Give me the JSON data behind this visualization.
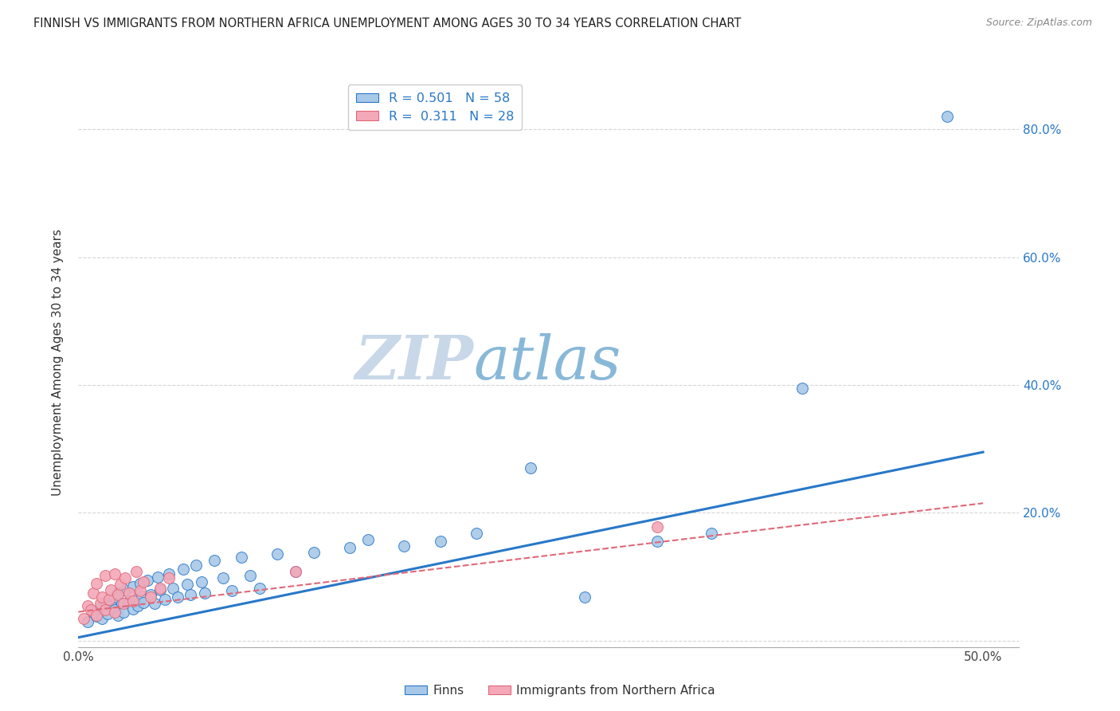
{
  "title": "FINNISH VS IMMIGRANTS FROM NORTHERN AFRICA UNEMPLOYMENT AMONG AGES 30 TO 34 YEARS CORRELATION CHART",
  "source": "Source: ZipAtlas.com",
  "ylabel": "Unemployment Among Ages 30 to 34 years",
  "xlim": [
    0.0,
    0.52
  ],
  "ylim": [
    -0.01,
    0.88
  ],
  "xticks": [
    0.0,
    0.1,
    0.2,
    0.3,
    0.4,
    0.5
  ],
  "yticks": [
    0.0,
    0.2,
    0.4,
    0.6,
    0.8
  ],
  "legend_r1": "0.501",
  "legend_n1": "58",
  "legend_r2": "0.311",
  "legend_n2": "28",
  "legend_label1": "Finns",
  "legend_label2": "Immigrants from Northern Africa",
  "scatter_color_blue": "#a8c8e8",
  "scatter_color_pink": "#f4a8b8",
  "line_color_blue": "#2878c8",
  "line_color_pink": "#e06878",
  "grid_color": "#cccccc",
  "watermark_zip": "#c8d8e8",
  "watermark_atlas": "#88b8d8",
  "blue_x": [
    0.005,
    0.008,
    0.01,
    0.012,
    0.013,
    0.015,
    0.016,
    0.018,
    0.02,
    0.02,
    0.022,
    0.022,
    0.024,
    0.025,
    0.026,
    0.028,
    0.03,
    0.03,
    0.032,
    0.033,
    0.034,
    0.035,
    0.036,
    0.038,
    0.04,
    0.042,
    0.044,
    0.045,
    0.048,
    0.05,
    0.052,
    0.055,
    0.058,
    0.06,
    0.062,
    0.065,
    0.068,
    0.07,
    0.075,
    0.08,
    0.085,
    0.09,
    0.095,
    0.1,
    0.11,
    0.12,
    0.13,
    0.15,
    0.16,
    0.18,
    0.2,
    0.22,
    0.25,
    0.28,
    0.32,
    0.35,
    0.4,
    0.48
  ],
  "blue_y": [
    0.03,
    0.045,
    0.038,
    0.052,
    0.035,
    0.06,
    0.042,
    0.055,
    0.048,
    0.068,
    0.04,
    0.075,
    0.058,
    0.045,
    0.08,
    0.062,
    0.05,
    0.085,
    0.065,
    0.055,
    0.09,
    0.07,
    0.06,
    0.095,
    0.072,
    0.058,
    0.1,
    0.08,
    0.065,
    0.105,
    0.082,
    0.068,
    0.112,
    0.088,
    0.072,
    0.118,
    0.092,
    0.075,
    0.125,
    0.098,
    0.078,
    0.13,
    0.102,
    0.082,
    0.135,
    0.108,
    0.138,
    0.145,
    0.158,
    0.148,
    0.155,
    0.168,
    0.27,
    0.068,
    0.155,
    0.168,
    0.395,
    0.82
  ],
  "pink_x": [
    0.003,
    0.005,
    0.007,
    0.008,
    0.01,
    0.01,
    0.012,
    0.013,
    0.015,
    0.015,
    0.017,
    0.018,
    0.02,
    0.02,
    0.022,
    0.023,
    0.025,
    0.026,
    0.028,
    0.03,
    0.032,
    0.034,
    0.036,
    0.04,
    0.045,
    0.05,
    0.12,
    0.32
  ],
  "pink_y": [
    0.035,
    0.055,
    0.048,
    0.075,
    0.04,
    0.09,
    0.058,
    0.068,
    0.048,
    0.102,
    0.065,
    0.08,
    0.045,
    0.105,
    0.072,
    0.088,
    0.058,
    0.098,
    0.075,
    0.062,
    0.108,
    0.078,
    0.092,
    0.068,
    0.082,
    0.098,
    0.108,
    0.178
  ],
  "blue_line_x": [
    0.0,
    0.5
  ],
  "blue_line_y": [
    0.005,
    0.295
  ],
  "pink_line_x": [
    0.0,
    0.5
  ],
  "pink_line_y": [
    0.045,
    0.215
  ]
}
